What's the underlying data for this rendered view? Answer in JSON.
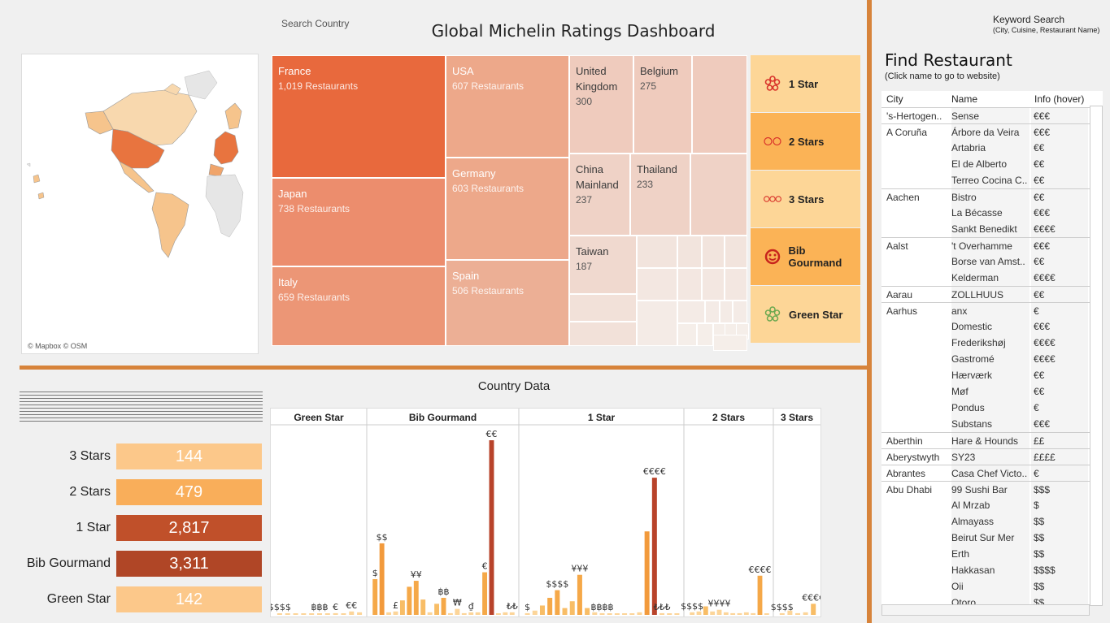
{
  "header": {
    "search_country": "Search Country",
    "title": "Global Michelin Ratings Dashboard"
  },
  "map": {
    "credit": "© Mapbox © OSM"
  },
  "treemap": [
    {
      "country": "France",
      "count": "1,019 Restaurants",
      "color": "#e8693d"
    },
    {
      "country": "USA",
      "count": "607 Restaurants",
      "color": "#eda88a"
    },
    {
      "country": "Japan",
      "count": "738 Restaurants",
      "color": "#ec8d6d"
    },
    {
      "country": "Germany",
      "count": "603 Restaurants",
      "color": "#eda88a"
    },
    {
      "country": "Italy",
      "count": "659 Restaurants",
      "color": "#ec9676"
    },
    {
      "country": "Spain",
      "count": "506 Restaurants",
      "color": "#ecaf95"
    },
    {
      "country": "United Kingdom",
      "count": "300",
      "color": "#efcbbd"
    },
    {
      "country": "Belgium",
      "count": "275",
      "color": "#efcbbd"
    },
    {
      "country": "China Mainland",
      "count": "237",
      "color": "#efd2c6"
    },
    {
      "country": "Thailand",
      "count": "233",
      "color": "#efd2c6"
    },
    {
      "country": "Taiwan",
      "count": "187",
      "color": "#f0d9cf"
    }
  ],
  "awards": [
    {
      "label": "1 Star",
      "icon": "one-star-icon",
      "color": "#fdd697"
    },
    {
      "label": "2 Stars",
      "icon": "two-stars-icon",
      "color": "#fbb356"
    },
    {
      "label": "3 Stars",
      "icon": "three-stars-icon",
      "color": "#fdd697"
    },
    {
      "label": "Bib Gourmand",
      "icon": "bib-gourmand-icon",
      "color": "#fbb356"
    },
    {
      "label": "Green Star",
      "icon": "green-star-icon",
      "color": "#fdd697"
    }
  ],
  "kpis": [
    {
      "label": "3 Stars",
      "value": "144",
      "color": "#fcc88a"
    },
    {
      "label": "2 Stars",
      "value": "479",
      "color": "#f9ae5a"
    },
    {
      "label": "1 Star",
      "value": "2,817",
      "color": "#c0502a"
    },
    {
      "label": "Bib Gourmand",
      "value": "3,311",
      "color": "#b04626"
    },
    {
      "label": "Green Star",
      "value": "142",
      "color": "#fcc88a"
    }
  ],
  "country_data": {
    "title": "Country Data"
  },
  "chart_data": {
    "type": "bar",
    "groups": [
      {
        "name": "Green Star",
        "bars": [
          {
            "label": "$$$$",
            "value": 1
          },
          {
            "label": "",
            "value": 1
          },
          {
            "label": "",
            "value": 1
          },
          {
            "label": "",
            "value": 1
          },
          {
            "label": "",
            "value": 1
          },
          {
            "label": "฿฿฿",
            "value": 1
          },
          {
            "label": "",
            "value": 1
          },
          {
            "label": "€",
            "value": 2
          },
          {
            "label": "",
            "value": 1
          },
          {
            "label": "€€",
            "value": 4
          },
          {
            "label": "",
            "value": 3
          }
        ]
      },
      {
        "name": "Bib Gourmand",
        "bars": [
          {
            "label": "$",
            "value": 42
          },
          {
            "label": "$$",
            "value": 84
          },
          {
            "label": "",
            "value": 3
          },
          {
            "label": "£",
            "value": 4
          },
          {
            "label": "",
            "value": 17
          },
          {
            "label": "",
            "value": 33
          },
          {
            "label": "¥¥",
            "value": 40
          },
          {
            "label": "",
            "value": 18
          },
          {
            "label": "",
            "value": 3
          },
          {
            "label": "",
            "value": 13
          },
          {
            "label": "฿฿",
            "value": 20
          },
          {
            "label": "",
            "value": 2
          },
          {
            "label": "₩",
            "value": 7
          },
          {
            "label": "",
            "value": 2
          },
          {
            "label": "₫",
            "value": 3
          },
          {
            "label": "",
            "value": 3
          },
          {
            "label": "€",
            "value": 50
          },
          {
            "label": "€€",
            "value": 205
          },
          {
            "label": "",
            "value": 1
          },
          {
            "label": "",
            "value": 3
          },
          {
            "label": "₺₺",
            "value": 3
          }
        ]
      },
      {
        "name": "1 Star",
        "bars": [
          {
            "label": "$",
            "value": 2
          },
          {
            "label": "",
            "value": 5
          },
          {
            "label": "",
            "value": 11
          },
          {
            "label": "",
            "value": 20
          },
          {
            "label": "$$$$",
            "value": 29
          },
          {
            "label": "",
            "value": 8
          },
          {
            "label": "",
            "value": 16
          },
          {
            "label": "¥¥¥",
            "value": 47
          },
          {
            "label": "",
            "value": 8
          },
          {
            "label": "",
            "value": 3
          },
          {
            "label": "฿฿฿฿",
            "value": 2
          },
          {
            "label": "",
            "value": 1
          },
          {
            "label": "",
            "value": 1
          },
          {
            "label": "",
            "value": 1
          },
          {
            "label": "",
            "value": 1
          },
          {
            "label": "",
            "value": 3
          },
          {
            "label": "",
            "value": 98
          },
          {
            "label": "€€€€",
            "value": 161
          },
          {
            "label": "₺₺₺",
            "value": 2
          },
          {
            "label": "",
            "value": 1
          },
          {
            "label": "",
            "value": 1
          }
        ]
      },
      {
        "name": "2 Stars",
        "bars": [
          {
            "label": "$$$$",
            "value": 3
          },
          {
            "label": "",
            "value": 4
          },
          {
            "label": "",
            "value": 10
          },
          {
            "label": "",
            "value": 4
          },
          {
            "label": "¥¥¥¥",
            "value": 6
          },
          {
            "label": "",
            "value": 3
          },
          {
            "label": "",
            "value": 2
          },
          {
            "label": "",
            "value": 2
          },
          {
            "label": "",
            "value": 3
          },
          {
            "label": "",
            "value": 2
          },
          {
            "label": "€€€€",
            "value": 46
          },
          {
            "label": "",
            "value": 1
          }
        ]
      },
      {
        "name": "3 Stars",
        "bars": [
          {
            "label": "$$$$",
            "value": 2
          },
          {
            "label": "",
            "value": 5
          },
          {
            "label": "",
            "value": 2
          },
          {
            "label": "",
            "value": 3
          },
          {
            "label": "€€€€",
            "value": 13
          }
        ]
      }
    ]
  },
  "right_panel": {
    "kw_title": "Keyword Search",
    "kw_sub": "(City, Cuisine, Restaurant Name)",
    "find_title": "Find Restaurant",
    "find_sub": "(Click name to go to website)",
    "col_city": "City",
    "col_name": "Name",
    "col_info": "Info (hover)",
    "rows": [
      {
        "city": "'s-Hertogen..",
        "name": "Sense",
        "info": "€€€"
      },
      {
        "city": "A Coruña",
        "name": "Árbore da Veira",
        "info": "€€€"
      },
      {
        "city": "",
        "name": "Artabria",
        "info": "€€"
      },
      {
        "city": "",
        "name": "El de Alberto",
        "info": "€€"
      },
      {
        "city": "",
        "name": "Terreo Cocina C..",
        "info": "€€"
      },
      {
        "city": "Aachen",
        "name": "Bistro",
        "info": "€€"
      },
      {
        "city": "",
        "name": "La Bécasse",
        "info": "€€€"
      },
      {
        "city": "",
        "name": "Sankt Benedikt",
        "info": "€€€€"
      },
      {
        "city": "Aalst",
        "name": "'t Overhamme",
        "info": "€€€"
      },
      {
        "city": "",
        "name": "Borse van Amst..",
        "info": "€€"
      },
      {
        "city": "",
        "name": "Kelderman",
        "info": "€€€€"
      },
      {
        "city": "Aarau",
        "name": "ZOLLHUUS",
        "info": "€€"
      },
      {
        "city": "Aarhus",
        "name": "anx",
        "info": "€"
      },
      {
        "city": "",
        "name": "Domestic",
        "info": "€€€"
      },
      {
        "city": "",
        "name": "Frederikshøj",
        "info": "€€€€"
      },
      {
        "city": "",
        "name": "Gastromé",
        "info": "€€€€"
      },
      {
        "city": "",
        "name": "Hærværk",
        "info": "€€"
      },
      {
        "city": "",
        "name": "Møf",
        "info": "€€"
      },
      {
        "city": "",
        "name": "Pondus",
        "info": "€"
      },
      {
        "city": "",
        "name": "Substans",
        "info": "€€€"
      },
      {
        "city": "Aberthin",
        "name": "Hare & Hounds",
        "info": "££"
      },
      {
        "city": "Aberystwyth",
        "name": "SY23",
        "info": "££££"
      },
      {
        "city": "Abrantes",
        "name": "Casa Chef Victo..",
        "info": "€"
      },
      {
        "city": "Abu Dhabi",
        "name": "99 Sushi Bar",
        "info": "$$$"
      },
      {
        "city": "",
        "name": "Al Mrzab",
        "info": "$"
      },
      {
        "city": "",
        "name": "Almayass",
        "info": "$$"
      },
      {
        "city": "",
        "name": "Beirut Sur Mer",
        "info": "$$"
      },
      {
        "city": "",
        "name": "Erth",
        "info": "$$"
      },
      {
        "city": "",
        "name": "Hakkasan",
        "info": "$$$$"
      },
      {
        "city": "",
        "name": "Oii",
        "info": "$$"
      },
      {
        "city": "",
        "name": "Otoro",
        "info": "$$"
      }
    ]
  }
}
